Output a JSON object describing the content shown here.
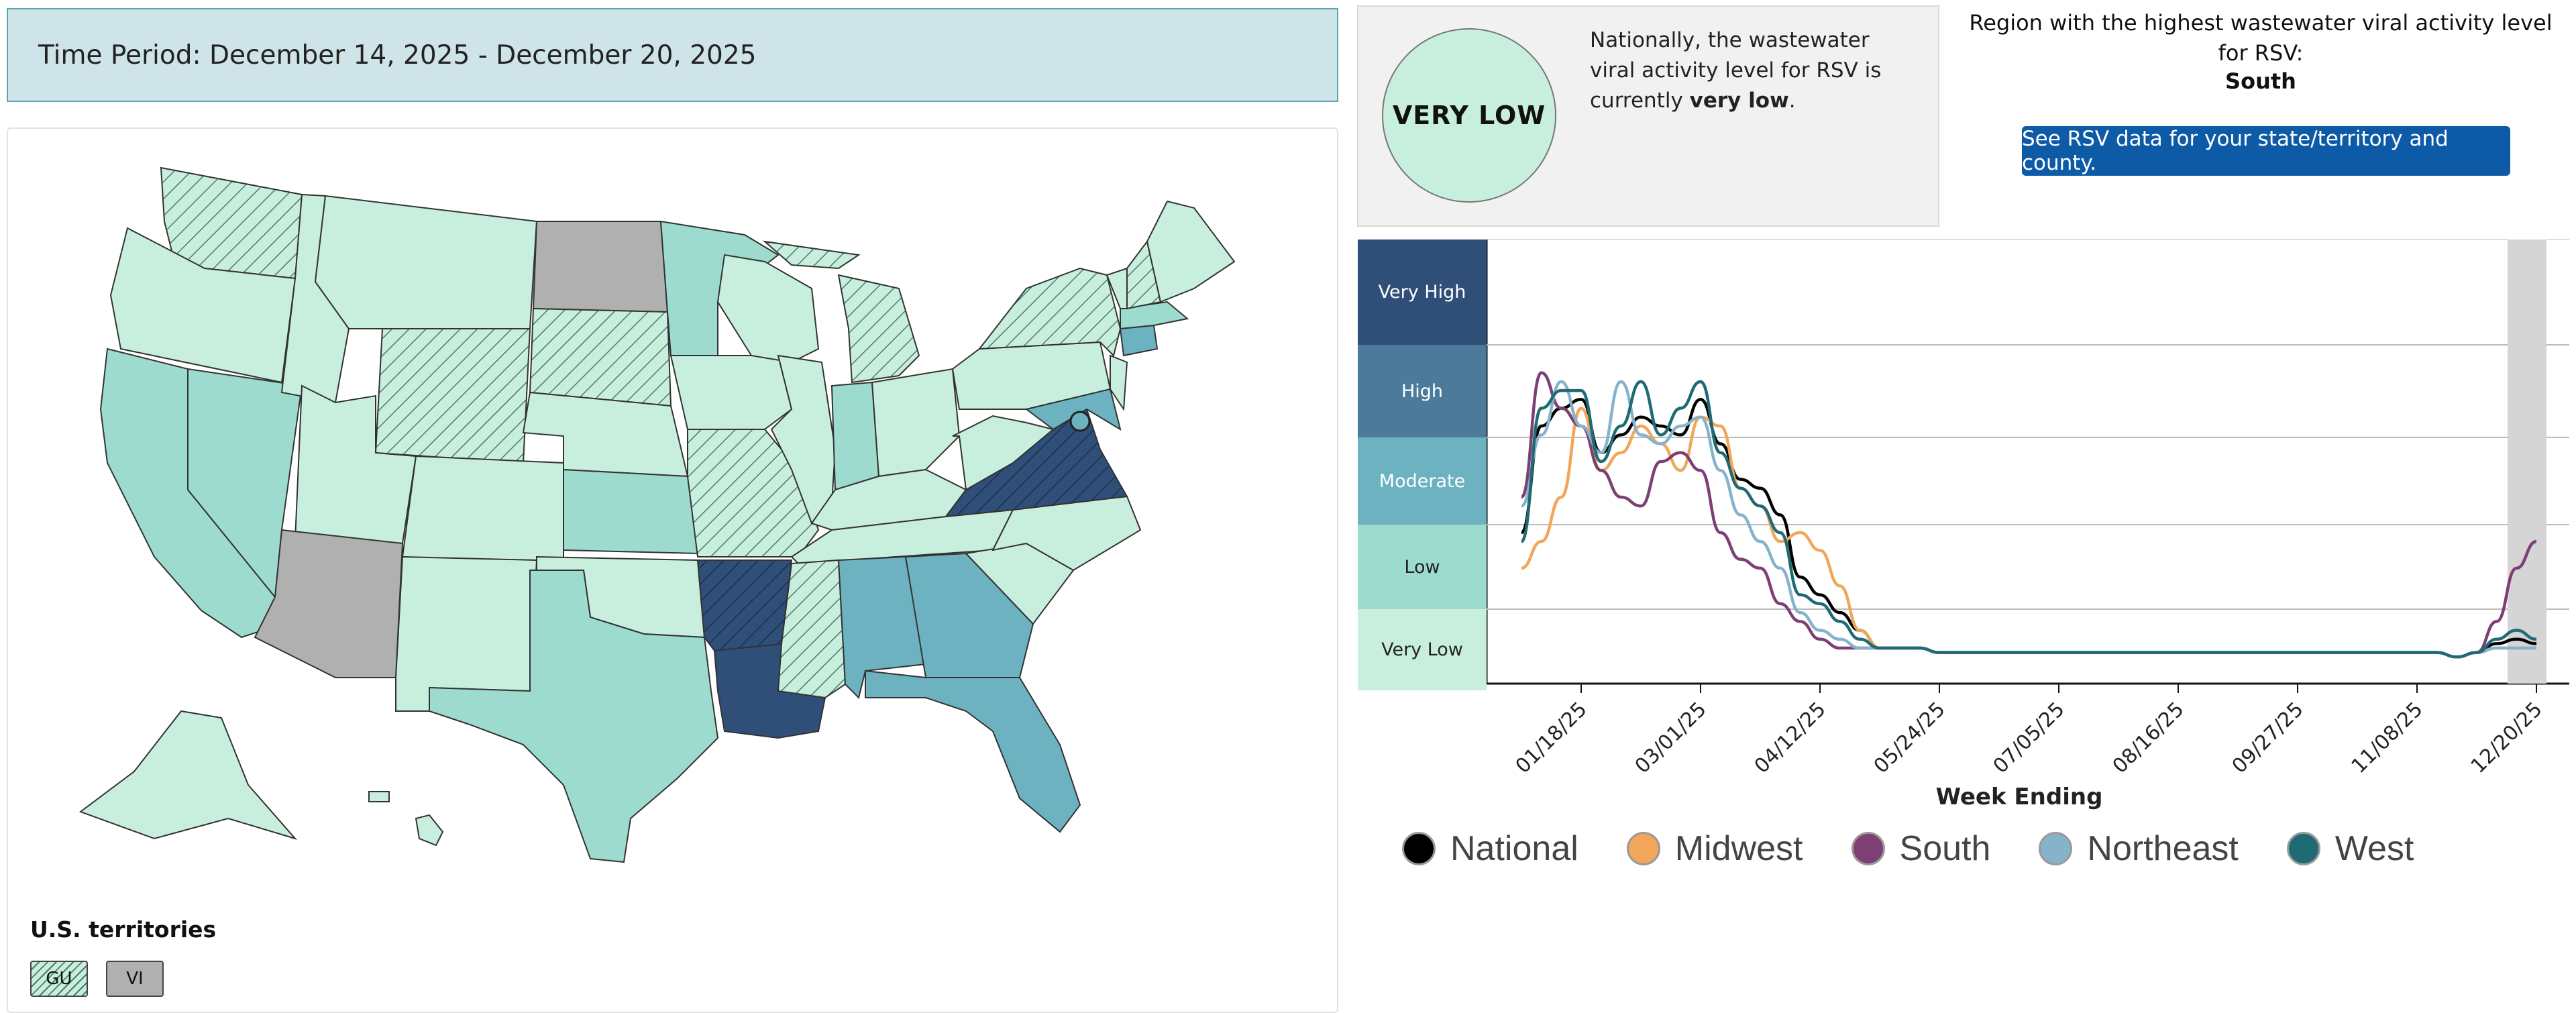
{
  "time_period": "Time Period: December 14, 2025 - December 20, 2025",
  "map": {
    "territories_title": "U.S. territories",
    "territories": [
      {
        "code": "GU",
        "level": "Low",
        "pattern": "hatched"
      },
      {
        "code": "VI",
        "level": "No data"
      }
    ],
    "level_colors": {
      "Very Low": "#c8efdd",
      "Low": "#9cdbce",
      "Moderate": "#6cb2c0",
      "High": "#4b7a9b",
      "Very High": "#2f4f78",
      "No data": "#b0b0b0"
    }
  },
  "status": {
    "level_label": "VERY LOW",
    "text_prefix": "Nationally, the wastewater viral activity level for RSV is currently",
    "text_level": "very low",
    "text_suffix": "."
  },
  "region": {
    "heading": "Region with the highest wastewater viral activity level for RSV:",
    "name": "South",
    "button_label": "See RSV data for your state/territory and county."
  },
  "chart_data": {
    "type": "line",
    "xlabel": "Week Ending",
    "x_ticks": [
      "01/18/25",
      "03/01/25",
      "04/12/25",
      "05/24/25",
      "07/05/25",
      "08/16/25",
      "09/27/25",
      "11/08/25",
      "12/20/25"
    ],
    "levels": [
      {
        "label": "Very High",
        "bg": "#2f4f78",
        "fg": "#ffffff"
      },
      {
        "label": "High",
        "bg": "#4b7a9b",
        "fg": "#ffffff"
      },
      {
        "label": "Moderate",
        "bg": "#6cb2c0",
        "fg": "#ffffff"
      },
      {
        "label": "Low",
        "bg": "#9cdbce",
        "fg": "#222222"
      },
      {
        "label": "Very Low",
        "bg": "#c8efdd",
        "fg": "#222222"
      }
    ],
    "x": [
      "12/28/24",
      "01/04/25",
      "01/11/25",
      "01/18/25",
      "01/25/25",
      "02/01/25",
      "02/08/25",
      "02/15/25",
      "02/22/25",
      "03/01/25",
      "03/08/25",
      "03/15/25",
      "03/22/25",
      "03/29/25",
      "04/05/25",
      "04/12/25",
      "04/19/25",
      "04/26/25",
      "05/03/25",
      "05/10/25",
      "05/17/25",
      "05/24/25",
      "06/28/25",
      "08/16/25",
      "10/04/25",
      "11/15/25",
      "11/22/25",
      "11/29/25",
      "12/06/25",
      "12/13/25",
      "12/20/25"
    ],
    "series": [
      {
        "name": "National",
        "color": "#000000",
        "values": [
          1.7,
          2.9,
          3.1,
          3.2,
          2.6,
          2.8,
          3.0,
          2.9,
          2.8,
          3.2,
          2.7,
          2.3,
          2.2,
          1.9,
          1.2,
          1.0,
          0.8,
          0.6,
          0.4,
          0.4,
          0.4,
          0.35,
          0.35,
          0.35,
          0.35,
          0.35,
          0.3,
          0.35,
          0.45,
          0.5,
          0.45
        ]
      },
      {
        "name": "Midwest",
        "color": "#f2a65a",
        "values": [
          1.3,
          1.6,
          2.1,
          3.1,
          2.4,
          2.6,
          2.9,
          2.7,
          2.4,
          3.0,
          2.9,
          2.2,
          2.0,
          1.6,
          1.7,
          1.5,
          1.1,
          0.6,
          0.4,
          0.4,
          0.4,
          0.35,
          0.35,
          0.35,
          0.35,
          0.35,
          0.3,
          0.35,
          0.4,
          0.4,
          0.4
        ]
      },
      {
        "name": "South",
        "color": "#7d3f74",
        "values": [
          2.1,
          3.5,
          3.1,
          2.9,
          2.4,
          2.1,
          2.0,
          2.5,
          2.6,
          2.4,
          1.7,
          1.4,
          1.3,
          0.9,
          0.7,
          0.5,
          0.4,
          0.4,
          0.4,
          0.4,
          0.4,
          0.35,
          0.35,
          0.35,
          0.35,
          0.35,
          0.3,
          0.35,
          0.7,
          1.3,
          1.6
        ]
      },
      {
        "name": "Northeast",
        "color": "#86b3cc",
        "values": [
          2.0,
          2.8,
          3.4,
          2.9,
          2.6,
          3.4,
          2.8,
          2.7,
          2.9,
          3.0,
          2.4,
          1.9,
          1.6,
          1.3,
          0.8,
          0.6,
          0.5,
          0.4,
          0.4,
          0.4,
          0.4,
          0.35,
          0.35,
          0.35,
          0.35,
          0.35,
          0.3,
          0.35,
          0.4,
          0.4,
          0.4
        ]
      },
      {
        "name": "West",
        "color": "#1f6b74",
        "values": [
          1.6,
          3.1,
          3.3,
          3.3,
          2.5,
          2.9,
          3.4,
          2.8,
          3.1,
          3.4,
          2.6,
          2.2,
          2.0,
          1.7,
          1.0,
          0.9,
          0.7,
          0.5,
          0.4,
          0.4,
          0.4,
          0.35,
          0.35,
          0.35,
          0.35,
          0.35,
          0.3,
          0.35,
          0.5,
          0.6,
          0.5
        ]
      }
    ],
    "ylim": [
      0,
      5
    ],
    "highlight": "12/20/25"
  }
}
